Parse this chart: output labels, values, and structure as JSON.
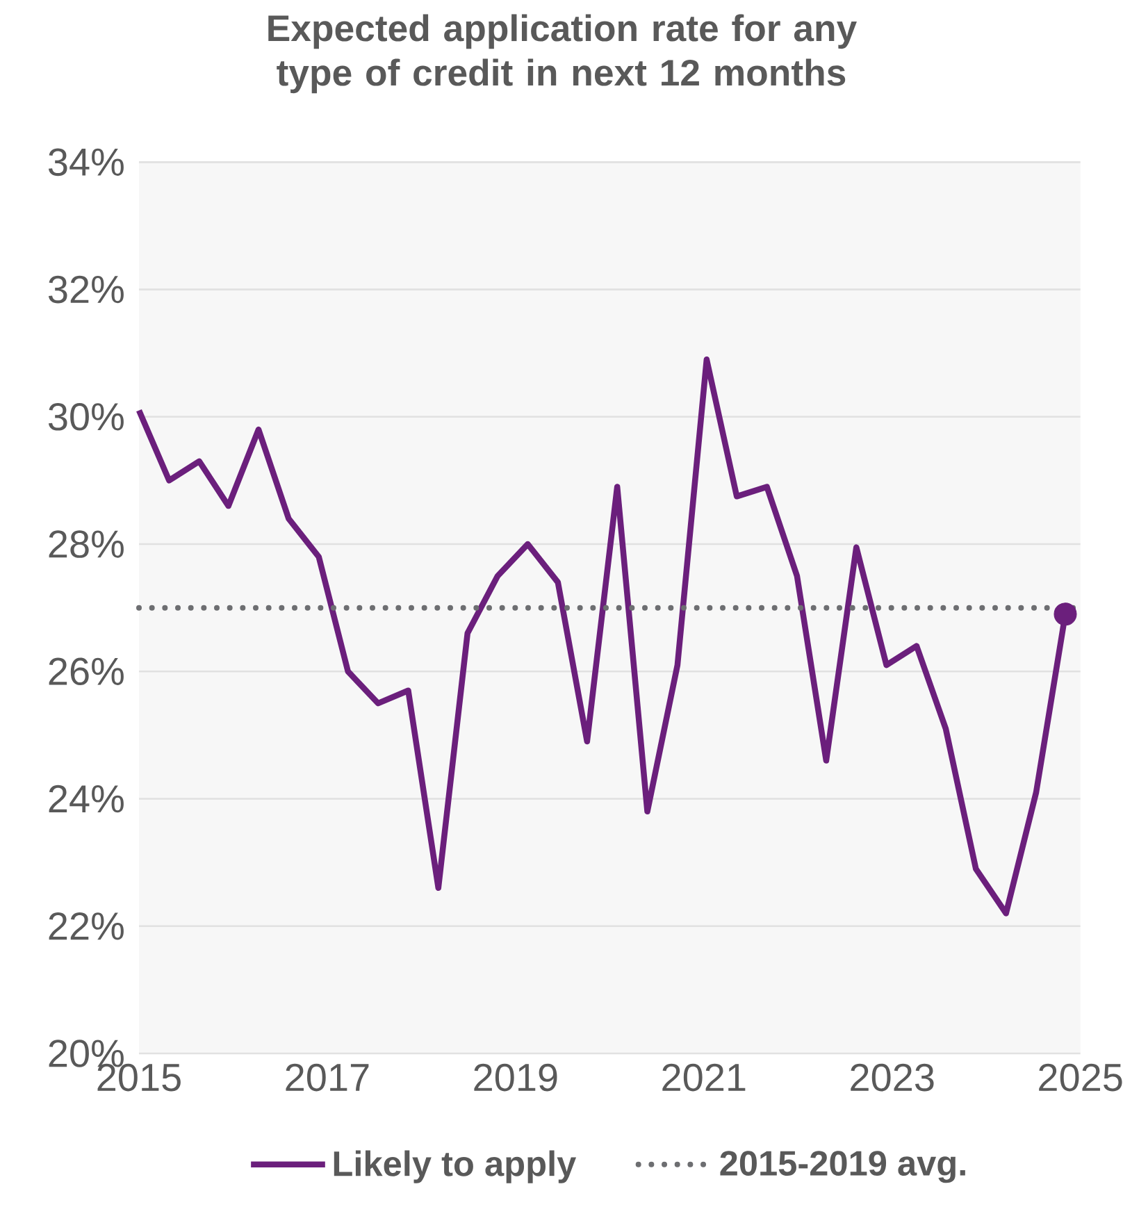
{
  "chart_data": {
    "type": "line",
    "title": "Expected application rate for any type of credit in next 12 months",
    "x": [
      2015,
      2015.32,
      2015.64,
      2015.95,
      2016.27,
      2016.59,
      2016.91,
      2017.22,
      2017.54,
      2017.86,
      2018.18,
      2018.49,
      2018.81,
      2019.13,
      2019.45,
      2019.76,
      2020.08,
      2020.4,
      2020.72,
      2021.03,
      2021.35,
      2021.67,
      2021.99,
      2022.3,
      2022.62,
      2022.94,
      2023.26,
      2023.57,
      2023.89,
      2024.21,
      2024.53,
      2024.84
    ],
    "series": [
      {
        "name": "Likely to apply",
        "color": "#6b1f7c",
        "values": [
          30.1,
          29.0,
          29.3,
          28.6,
          29.8,
          28.4,
          27.8,
          26.0,
          25.5,
          25.7,
          22.6,
          26.6,
          27.5,
          28.0,
          27.4,
          24.9,
          28.9,
          23.8,
          26.1,
          30.9,
          28.75,
          28.9,
          27.5,
          24.6,
          27.95,
          26.1,
          26.4,
          25.1,
          22.9,
          22.2,
          24.1,
          26.9
        ]
      },
      {
        "type": "scatter",
        "color": "#6b1f7c",
        "x": [
          2024.84
        ],
        "values": [
          26.9
        ],
        "marker": "circle"
      }
    ],
    "ref_lines": [
      {
        "axis": "y",
        "value": 27.0,
        "label": "2015-2019 avg.",
        "color": "#6d6e71",
        "line_style": "dotted"
      }
    ],
    "xlim": [
      2015,
      2025
    ],
    "xticks": [
      2015,
      2017,
      2019,
      2021,
      2023,
      2025
    ],
    "ylim": [
      20,
      34
    ],
    "yticks": [
      {
        "value": 20,
        "label": "20%"
      },
      {
        "value": 22,
        "label": "22%"
      },
      {
        "value": 24,
        "label": "24%"
      },
      {
        "value": 26,
        "label": "26%"
      },
      {
        "value": 28,
        "label": "28%"
      },
      {
        "value": 30,
        "label": "30%"
      },
      {
        "value": 32,
        "label": "32%"
      },
      {
        "value": 34,
        "label": "34%"
      }
    ],
    "grid": "y",
    "legend": "bottom",
    "marker": "none",
    "line_style": "solid"
  }
}
